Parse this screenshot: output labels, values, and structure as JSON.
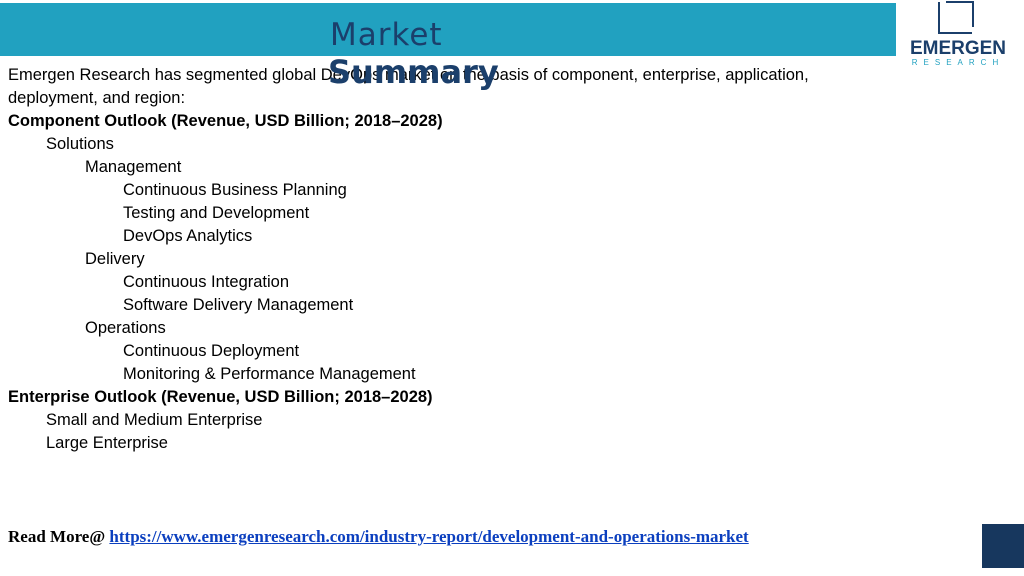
{
  "header": {
    "title_line1": "Market",
    "title_line2": "Summary",
    "colors": {
      "bar": "#21a1c0",
      "title": "#1b3f6b"
    }
  },
  "logo": {
    "name": "EMERGEN",
    "sub": "RESEARCH",
    "icon": "emergen-logo-mark"
  },
  "intro": "Emergen Research has segmented global DevOps market on the basis of component, enterprise, application, deployment, and region:",
  "component": {
    "heading": "Component Outlook (Revenue, USD Billion; 2018–2028)",
    "solutions": "Solutions",
    "management": {
      "label": "Management",
      "items": [
        "Continuous Business Planning",
        "Testing and Development",
        "DevOps Analytics"
      ]
    },
    "delivery": {
      "label": "Delivery",
      "items": [
        "Continuous Integration",
        "Software Delivery Management"
      ]
    },
    "operations": {
      "label": "Operations",
      "items": [
        "Continuous Deployment",
        "Monitoring & Performance Management"
      ]
    }
  },
  "enterprise": {
    "heading": "Enterprise Outlook (Revenue, USD Billion; 2018–2028)",
    "items": [
      "Small and Medium Enterprise",
      "Large Enterprise"
    ]
  },
  "footer": {
    "read_more_label": "Read More@ ",
    "link": "https://www.emergenresearch.com/industry-report/development-and-operations-market"
  }
}
